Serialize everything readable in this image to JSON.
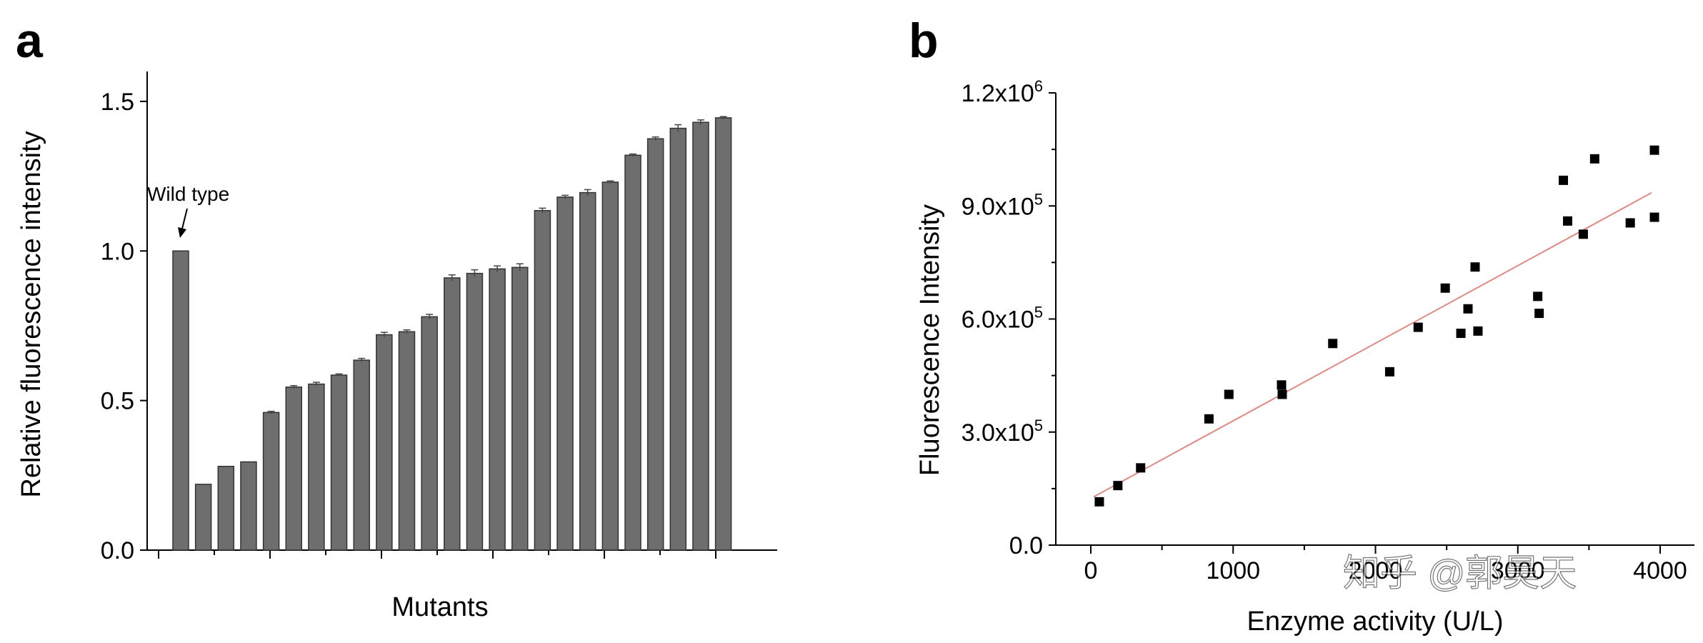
{
  "chart_data": [
    {
      "panel": "a",
      "type": "bar",
      "title": "",
      "xlabel": "Mutants",
      "ylabel": "Relative fluorescence intensity",
      "ylim": [
        0,
        1.6
      ],
      "yticks": [
        0.0,
        0.5,
        1.0,
        1.5
      ],
      "ytick_labels": [
        "0.0",
        "0.5",
        "1.0",
        "1.5"
      ],
      "annotation": "Wild type",
      "annotated_index": 0,
      "values": [
        1.0,
        0.22,
        0.28,
        0.295,
        0.46,
        0.545,
        0.555,
        0.585,
        0.635,
        0.72,
        0.73,
        0.78,
        0.91,
        0.925,
        0.94,
        0.945,
        1.135,
        1.18,
        1.195,
        1.23,
        1.32,
        1.375,
        1.41,
        1.43,
        1.445
      ],
      "errors": [
        0,
        0,
        0,
        0,
        0.004,
        0.005,
        0.006,
        0.004,
        0.006,
        0.008,
        0.006,
        0.008,
        0.01,
        0.012,
        0.01,
        0.012,
        0.008,
        0.006,
        0.01,
        0.004,
        0.004,
        0.006,
        0.012,
        0.008,
        0.004
      ]
    },
    {
      "panel": "b",
      "type": "scatter",
      "title": "",
      "xlabel": "Enzyme activity (U/L)",
      "ylabel": "Fluorescence Intensity",
      "xlim": [
        -200,
        4200
      ],
      "ylim": [
        0,
        1200000
      ],
      "xticks": [
        0,
        1000,
        2000,
        3000,
        4000
      ],
      "xtick_labels": [
        "0",
        "1000",
        "2000",
        "3000",
        "4000"
      ],
      "yticks": [
        0,
        300000,
        600000,
        900000,
        1200000
      ],
      "ytick_labels": [
        {
          "mant": "0.0",
          "exp": ""
        },
        {
          "mant": "3.0x10",
          "exp": "5"
        },
        {
          "mant": "6.0x10",
          "exp": "5"
        },
        {
          "mant": "9.0x10",
          "exp": "5"
        },
        {
          "mant": "1.2x10",
          "exp": "6"
        }
      ],
      "points": [
        [
          60,
          115000
        ],
        [
          190,
          158000
        ],
        [
          350,
          205000
        ],
        [
          830,
          335000
        ],
        [
          970,
          400000
        ],
        [
          1340,
          425000
        ],
        [
          1345,
          400000
        ],
        [
          1700,
          535000
        ],
        [
          2100,
          460000
        ],
        [
          2300,
          578000
        ],
        [
          2490,
          682000
        ],
        [
          2600,
          562000
        ],
        [
          2650,
          627000
        ],
        [
          2700,
          738000
        ],
        [
          2720,
          568000
        ],
        [
          3140,
          660000
        ],
        [
          3150,
          615000
        ],
        [
          3320,
          968000
        ],
        [
          3350,
          860000
        ],
        [
          3460,
          825000
        ],
        [
          3540,
          1025000
        ],
        [
          3790,
          855000
        ],
        [
          3960,
          1048000
        ],
        [
          3960,
          870000
        ]
      ],
      "fit_line": {
        "x": [
          20,
          3940
        ],
        "y": [
          128000,
          935000
        ]
      }
    }
  ],
  "labels": {
    "panel_a": "a",
    "panel_b": "b",
    "watermark": "知乎 @郭昊天"
  },
  "colors": {
    "bar_fill": "#6e6e6e",
    "fit_line": "#e08a85",
    "points": "#000000"
  }
}
